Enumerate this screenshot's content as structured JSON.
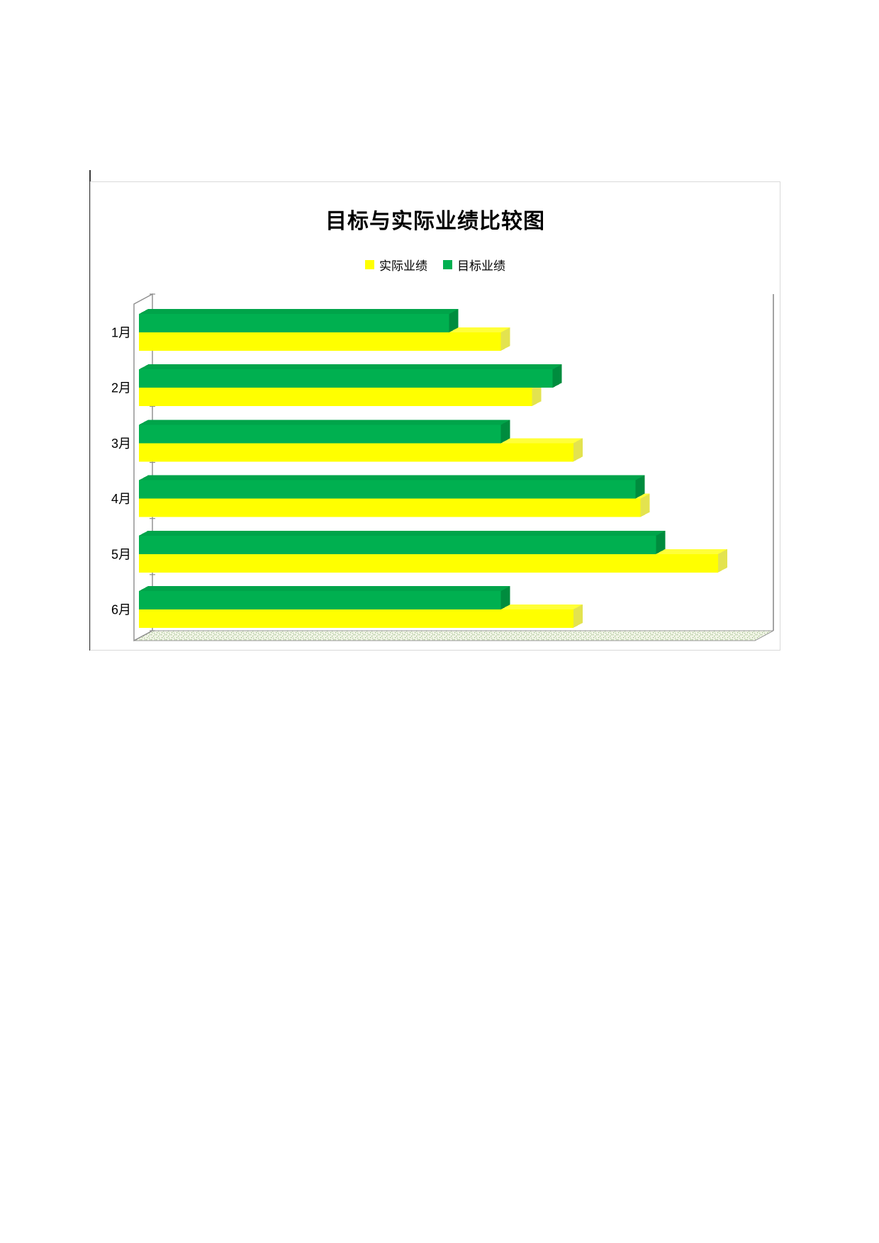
{
  "page": {
    "background": "#ffffff"
  },
  "container": {
    "border_color": "#d9d9d9",
    "left_rule_color": "#3a3a3a"
  },
  "colors": {
    "wall_line": "#8c8c8c",
    "floor_border": "#999999",
    "floor_base": "#f1f4e6",
    "floor_dot": "#9dbe8a",
    "title_color": "#000000",
    "label_color": "#000000"
  },
  "chart_data": {
    "type": "bar",
    "orientation": "horizontal",
    "style": "3d",
    "title": "目标与实际业绩比较图",
    "categories": [
      "1月",
      "2月",
      "3月",
      "4月",
      "5月",
      "6月"
    ],
    "series": [
      {
        "name": "实际业绩",
        "values": [
          70,
          76,
          84,
          97,
          112,
          84
        ],
        "color": "#ffff00",
        "color_top": "#ffff38",
        "color_side": "#e3e34f"
      },
      {
        "name": "目标业绩",
        "values": [
          60,
          80,
          70,
          96,
          100,
          70
        ],
        "color": "#00b050",
        "color_top": "#00a44a",
        "color_side": "#008c3e"
      }
    ],
    "xlabel": "",
    "ylabel": "",
    "xlim": [
      0,
      120
    ],
    "value_axis_labels_visible": false,
    "grid": false,
    "legend_position": "top-center"
  }
}
